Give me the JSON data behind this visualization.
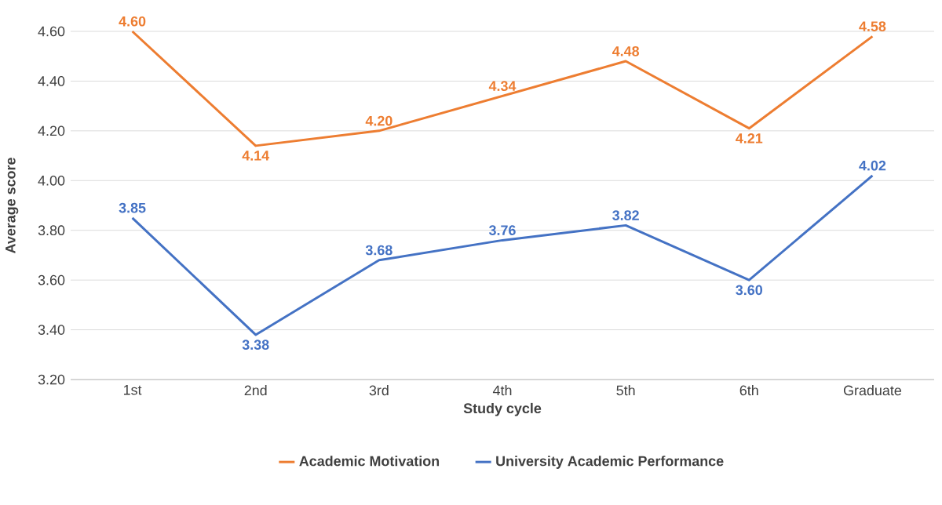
{
  "chart_data": {
    "type": "line",
    "xlabel": "Study cycle",
    "ylabel": "Average score",
    "categories": [
      "1st",
      "2nd",
      "3rd",
      "4th",
      "5th",
      "6th",
      "Graduate"
    ],
    "series": [
      {
        "name": "Academic Motivation",
        "color": "#ed7d31",
        "values": [
          4.6,
          4.14,
          4.2,
          4.34,
          4.48,
          4.21,
          4.58
        ],
        "value_labels": [
          "4.60",
          "4.14",
          "4.20",
          "4.34",
          "4.48",
          "4.21",
          "4.58"
        ]
      },
      {
        "name": "University Academic Performance",
        "color": "#4472c4",
        "values": [
          3.85,
          3.38,
          3.68,
          3.76,
          3.82,
          3.6,
          4.02
        ],
        "value_labels": [
          "3.85",
          "3.38",
          "3.68",
          "3.76",
          "3.82",
          "3.60",
          "4.02"
        ]
      }
    ],
    "ylim": [
      3.2,
      4.6
    ],
    "yticks": [
      {
        "value": 3.2,
        "label": "3.20"
      },
      {
        "value": 3.4,
        "label": "3.40"
      },
      {
        "value": 3.6,
        "label": "3.60"
      },
      {
        "value": 3.8,
        "label": "3.80"
      },
      {
        "value": 4.0,
        "label": "4.00"
      },
      {
        "value": 4.2,
        "label": "4.20"
      },
      {
        "value": 4.4,
        "label": "4.40"
      },
      {
        "value": 4.6,
        "label": "4.60"
      }
    ],
    "grid": "y",
    "legend": "bottom",
    "marker": "none",
    "line_style": "solid"
  }
}
